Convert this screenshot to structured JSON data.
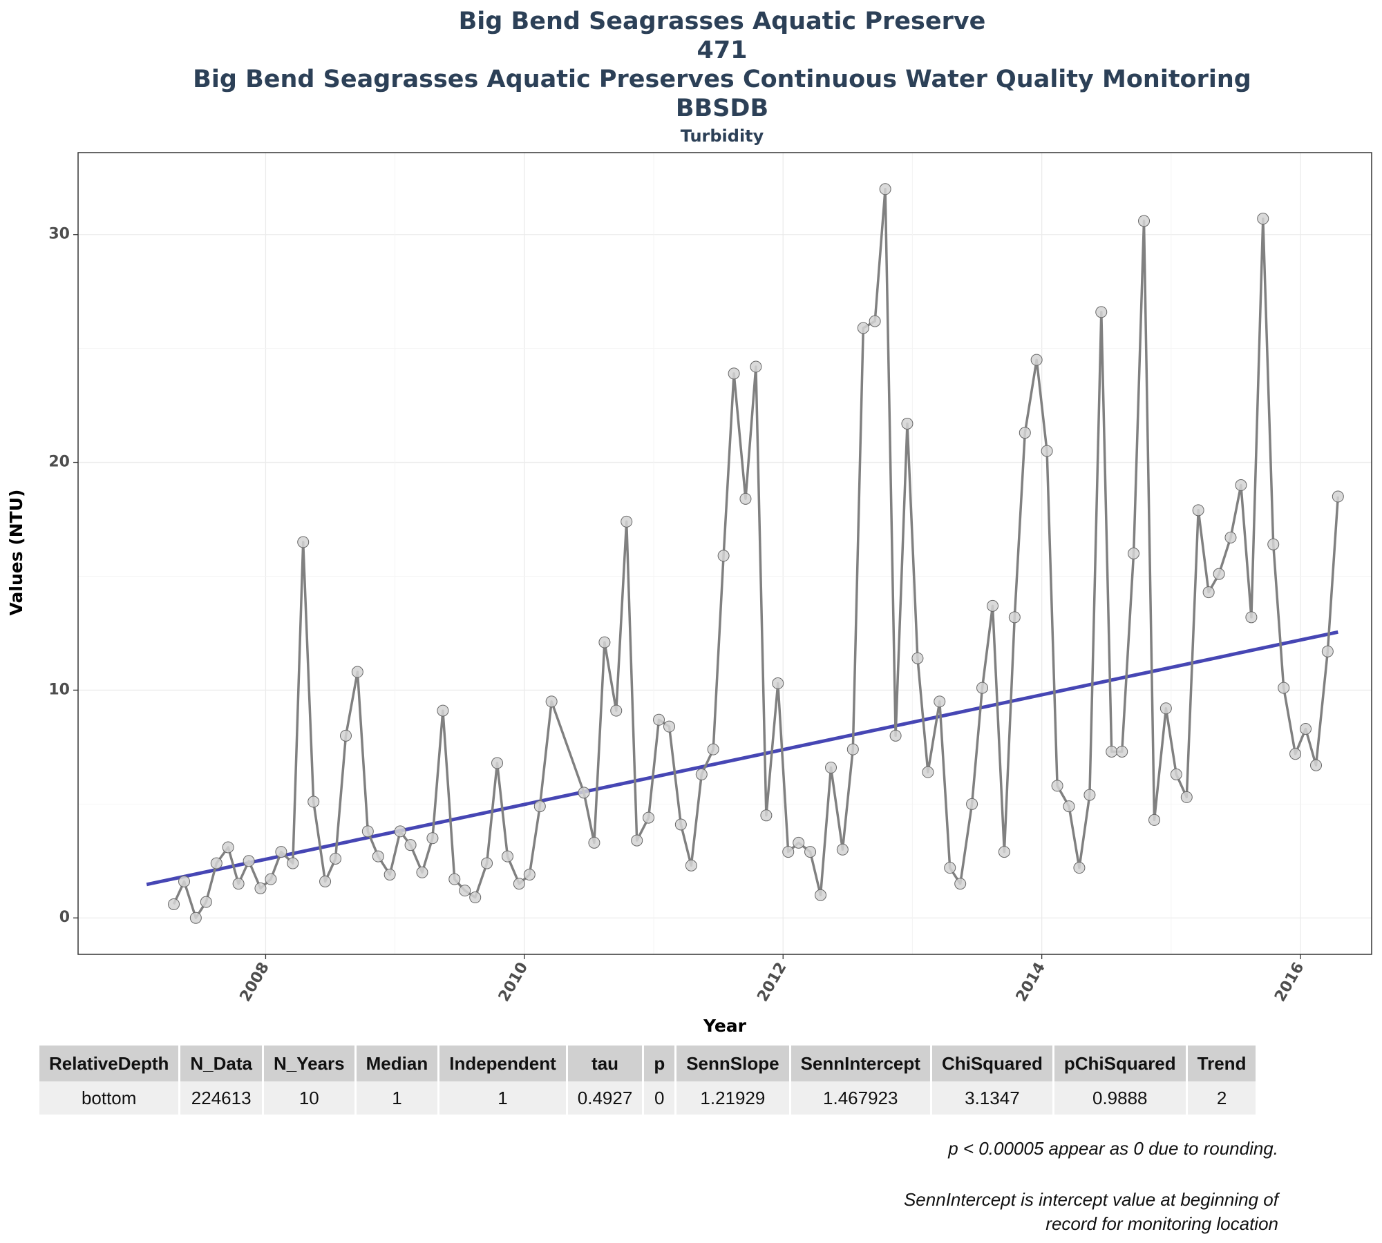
{
  "titles": {
    "line1": "Big Bend Seagrasses Aquatic Preserve",
    "line2": "471",
    "line3": "Big Bend Seagrasses Aquatic Preserves Continuous Water Quality Monitoring",
    "line4": "BBSDB",
    "subtitle": "Turbidity"
  },
  "chart_data": {
    "type": "line",
    "title": "Big Bend Seagrasses Aquatic Preserve",
    "subtitle": "Turbidity",
    "xlabel": "Year",
    "ylabel": "Values (NTU)",
    "xlim": [
      2006.55,
      2016.55
    ],
    "ylim": [
      -1.6,
      33.6
    ],
    "x_ticks": [
      2008,
      2010,
      2012,
      2014,
      2016
    ],
    "y_ticks": [
      0,
      10,
      20,
      30
    ],
    "grid": true,
    "legend": "none",
    "series": [
      {
        "values": [
          [
            2007.29,
            0.6
          ],
          [
            2007.37,
            1.6
          ],
          [
            2007.46,
            0.0
          ],
          [
            2007.54,
            0.7
          ],
          [
            2007.62,
            2.4
          ],
          [
            2007.71,
            3.1
          ],
          [
            2007.79,
            1.5
          ],
          [
            2007.87,
            2.5
          ],
          [
            2007.96,
            1.3
          ],
          [
            2008.04,
            1.7
          ],
          [
            2008.12,
            2.9
          ],
          [
            2008.21,
            2.4
          ],
          [
            2008.29,
            16.5
          ],
          [
            2008.37,
            5.1
          ],
          [
            2008.46,
            1.6
          ],
          [
            2008.54,
            2.6
          ],
          [
            2008.62,
            8.0
          ],
          [
            2008.71,
            10.8
          ],
          [
            2008.79,
            3.8
          ],
          [
            2008.87,
            2.7
          ],
          [
            2008.96,
            1.9
          ],
          [
            2009.04,
            3.8
          ],
          [
            2009.12,
            3.2
          ],
          [
            2009.21,
            2.0
          ],
          [
            2009.29,
            3.5
          ],
          [
            2009.37,
            9.1
          ],
          [
            2009.46,
            1.7
          ],
          [
            2009.54,
            1.2
          ],
          [
            2009.62,
            0.9
          ],
          [
            2009.71,
            2.4
          ],
          [
            2009.79,
            6.8
          ],
          [
            2009.87,
            2.7
          ],
          [
            2009.96,
            1.5
          ],
          [
            2010.04,
            1.9
          ],
          [
            2010.12,
            4.9
          ],
          [
            2010.21,
            9.5
          ],
          [
            2010.46,
            5.5
          ],
          [
            2010.54,
            3.3
          ],
          [
            2010.62,
            12.1
          ],
          [
            2010.71,
            9.1
          ],
          [
            2010.79,
            17.4
          ],
          [
            2010.87,
            3.4
          ],
          [
            2010.96,
            4.4
          ],
          [
            2011.04,
            8.7
          ],
          [
            2011.12,
            8.4
          ],
          [
            2011.21,
            4.1
          ],
          [
            2011.29,
            2.3
          ],
          [
            2011.37,
            6.3
          ],
          [
            2011.46,
            7.4
          ],
          [
            2011.54,
            15.9
          ],
          [
            2011.62,
            23.9
          ],
          [
            2011.71,
            18.4
          ],
          [
            2011.79,
            24.2
          ],
          [
            2011.87,
            4.5
          ],
          [
            2011.96,
            10.3
          ],
          [
            2012.04,
            2.9
          ],
          [
            2012.12,
            3.3
          ],
          [
            2012.21,
            2.9
          ],
          [
            2012.29,
            1.0
          ],
          [
            2012.37,
            6.6
          ],
          [
            2012.46,
            3.0
          ],
          [
            2012.54,
            7.4
          ],
          [
            2012.62,
            25.9
          ],
          [
            2012.71,
            26.2
          ],
          [
            2012.79,
            32.0
          ],
          [
            2012.87,
            8.0
          ],
          [
            2012.96,
            21.7
          ],
          [
            2013.04,
            11.4
          ],
          [
            2013.12,
            6.4
          ],
          [
            2013.21,
            9.5
          ],
          [
            2013.29,
            2.2
          ],
          [
            2013.37,
            1.5
          ],
          [
            2013.46,
            5.0
          ],
          [
            2013.54,
            10.1
          ],
          [
            2013.62,
            13.7
          ],
          [
            2013.71,
            2.9
          ],
          [
            2013.79,
            13.2
          ],
          [
            2013.87,
            21.3
          ],
          [
            2013.96,
            24.5
          ],
          [
            2014.04,
            20.5
          ],
          [
            2014.12,
            5.8
          ],
          [
            2014.21,
            4.9
          ],
          [
            2014.29,
            2.2
          ],
          [
            2014.37,
            5.4
          ],
          [
            2014.46,
            26.6
          ],
          [
            2014.54,
            7.3
          ],
          [
            2014.62,
            7.3
          ],
          [
            2014.71,
            16.0
          ],
          [
            2014.79,
            30.6
          ],
          [
            2014.87,
            4.3
          ],
          [
            2014.96,
            9.2
          ],
          [
            2015.04,
            6.3
          ],
          [
            2015.12,
            5.3
          ],
          [
            2015.21,
            17.9
          ],
          [
            2015.29,
            14.3
          ],
          [
            2015.37,
            15.1
          ],
          [
            2015.46,
            16.7
          ],
          [
            2015.54,
            19.0
          ],
          [
            2015.62,
            13.2
          ],
          [
            2015.71,
            30.7
          ],
          [
            2015.79,
            16.4
          ],
          [
            2015.87,
            10.1
          ],
          [
            2015.96,
            7.2
          ],
          [
            2016.04,
            8.3
          ],
          [
            2016.12,
            6.7
          ],
          [
            2016.21,
            11.7
          ],
          [
            2016.29,
            18.5
          ]
        ]
      }
    ],
    "trend_line": {
      "x": [
        2007.08,
        2016.29
      ],
      "y": [
        1.467923,
        12.55
      ]
    },
    "colors": {
      "line": "#808080",
      "point_fill": "#d3d3d3",
      "trend": "#4646b4"
    }
  },
  "table": {
    "headers": [
      "RelativeDepth",
      "N_Data",
      "N_Years",
      "Median",
      "Independent",
      "tau",
      "p",
      "SennSlope",
      "SennIntercept",
      "ChiSquared",
      "pChiSquared",
      "Trend"
    ],
    "rows": [
      [
        "bottom",
        "224613",
        "10",
        "1",
        "1",
        "0.4927",
        "0",
        "1.21929",
        "1.467923",
        "3.1347",
        "0.9888",
        "2"
      ]
    ]
  },
  "notes": {
    "rounding": "p < 0.00005 appear as 0 due to rounding.",
    "intercept_line1": "SennIntercept is intercept value at beginning of",
    "intercept_line2": "record for monitoring location"
  }
}
